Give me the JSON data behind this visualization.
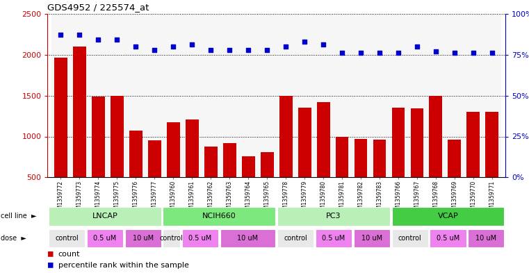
{
  "title": "GDS4952 / 225574_at",
  "samples": [
    "GSM1359772",
    "GSM1359773",
    "GSM1359774",
    "GSM1359775",
    "GSM1359776",
    "GSM1359777",
    "GSM1359760",
    "GSM1359761",
    "GSM1359762",
    "GSM1359763",
    "GSM1359764",
    "GSM1359765",
    "GSM1359778",
    "GSM1359779",
    "GSM1359780",
    "GSM1359781",
    "GSM1359782",
    "GSM1359783",
    "GSM1359766",
    "GSM1359767",
    "GSM1359768",
    "GSM1359769",
    "GSM1359770",
    "GSM1359771"
  ],
  "counts": [
    1960,
    2100,
    1490,
    1500,
    1070,
    950,
    1170,
    1210,
    880,
    920,
    760,
    810,
    1500,
    1350,
    1420,
    1000,
    970,
    960,
    1350,
    1340,
    1500,
    960,
    1300,
    1300
  ],
  "percentile_right": [
    87,
    87,
    84,
    84,
    80,
    78,
    80,
    81,
    78,
    78,
    78,
    78,
    80,
    83,
    81,
    76,
    76,
    76,
    76,
    80,
    77,
    76,
    76,
    76
  ],
  "cell_line_data": [
    {
      "label": "LNCAP",
      "start": 0,
      "end": 6,
      "color": "#b8f0b8"
    },
    {
      "label": "NCIH660",
      "start": 6,
      "end": 12,
      "color": "#7de87d"
    },
    {
      "label": "PC3",
      "start": 12,
      "end": 18,
      "color": "#b8f0b8"
    },
    {
      "label": "VCAP",
      "start": 18,
      "end": 24,
      "color": "#44cc44"
    }
  ],
  "dose_row_data": [
    {
      "label": "control",
      "start": 0,
      "end": 2,
      "color": "#e8e8e8"
    },
    {
      "label": "0.5 uM",
      "start": 2,
      "end": 4,
      "color": "#ee82ee"
    },
    {
      "label": "10 uM",
      "start": 4,
      "end": 6,
      "color": "#da70d6"
    },
    {
      "label": "control",
      "start": 6,
      "end": 7,
      "color": "#e8e8e8"
    },
    {
      "label": "0.5 uM",
      "start": 7,
      "end": 9,
      "color": "#ee82ee"
    },
    {
      "label": "10 uM",
      "start": 9,
      "end": 12,
      "color": "#da70d6"
    },
    {
      "label": "control",
      "start": 12,
      "end": 14,
      "color": "#e8e8e8"
    },
    {
      "label": "0.5 uM",
      "start": 14,
      "end": 16,
      "color": "#ee82ee"
    },
    {
      "label": "10 uM",
      "start": 16,
      "end": 18,
      "color": "#da70d6"
    },
    {
      "label": "control",
      "start": 18,
      "end": 20,
      "color": "#e8e8e8"
    },
    {
      "label": "0.5 uM",
      "start": 20,
      "end": 22,
      "color": "#ee82ee"
    },
    {
      "label": "10 uM",
      "start": 22,
      "end": 24,
      "color": "#da70d6"
    }
  ],
  "bar_color": "#cc0000",
  "dot_color": "#0000cc",
  "ylim_left": [
    500,
    2500
  ],
  "ylim_right": [
    0,
    100
  ],
  "yticks_left": [
    500,
    1000,
    1500,
    2000,
    2500
  ],
  "yticks_right": [
    0,
    25,
    50,
    75,
    100
  ],
  "background_color": "#ffffff"
}
